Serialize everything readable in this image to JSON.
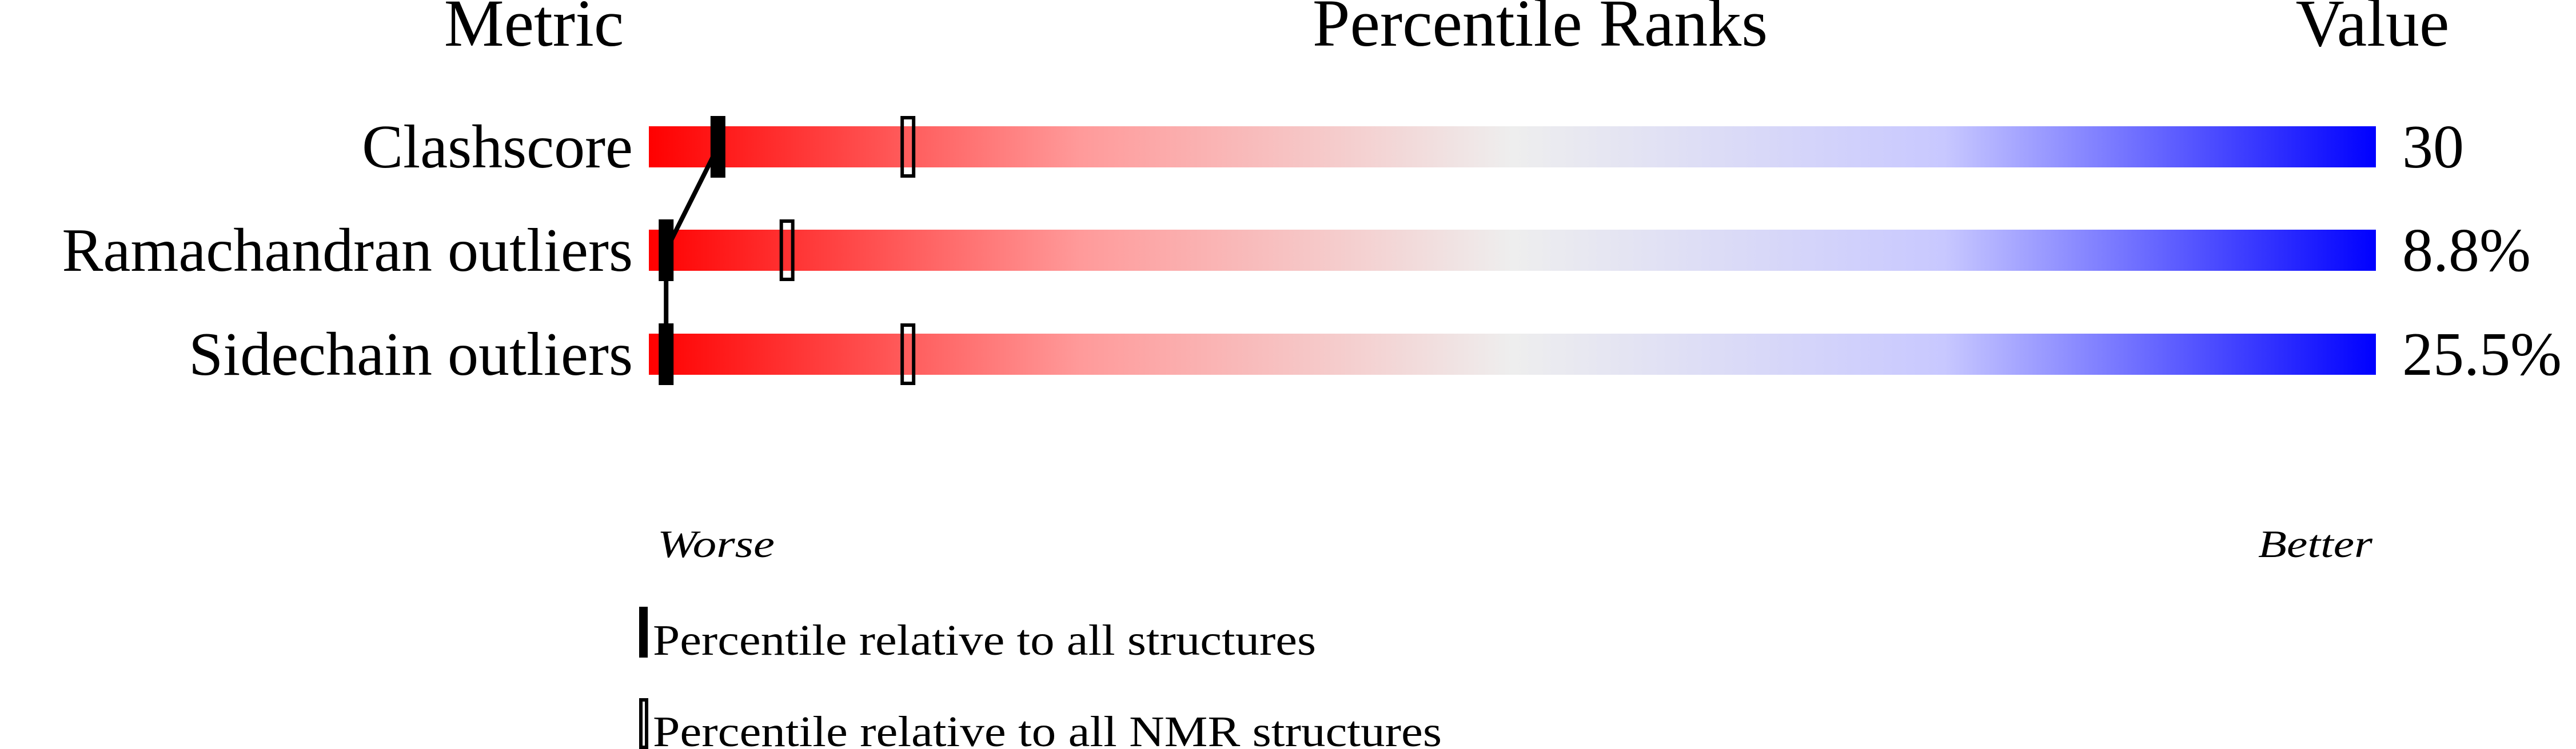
{
  "chart_data": {
    "type": "percentile-slider",
    "headers": {
      "metric": "Metric",
      "ranks": "Percentile Ranks",
      "value": "Value"
    },
    "xlim": [
      0,
      100
    ],
    "axis_labels": {
      "left": "Worse",
      "right": "Better"
    },
    "gradient_colors": [
      "#ff0000",
      "#eeeeee",
      "#0000ff"
    ],
    "rows": [
      {
        "metric": "Clashscore",
        "value": "30",
        "percentile_all": 4,
        "percentile_nmr": 15
      },
      {
        "metric": "Ramachandran outliers",
        "value": "8.8%",
        "percentile_all": 1,
        "percentile_nmr": 8
      },
      {
        "metric": "Sidechain outliers",
        "value": "25.5%",
        "percentile_all": 1,
        "percentile_nmr": 15
      }
    ],
    "legend": [
      {
        "label": "Percentile relative to all structures",
        "style": "filled"
      },
      {
        "label": "Percentile relative to all NMR structures",
        "style": "outline"
      }
    ]
  }
}
